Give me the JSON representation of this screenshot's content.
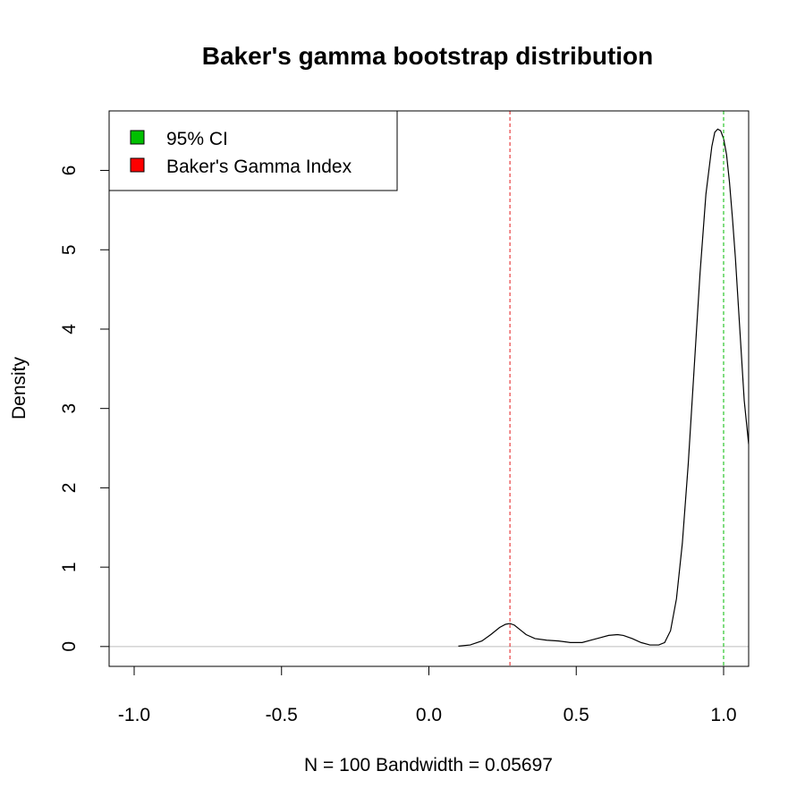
{
  "chart_data": {
    "type": "line",
    "title": "Baker's gamma bootstrap distribution",
    "xlabel": "N = 100   Bandwidth = 0.05697",
    "ylabel": "Density",
    "xlim": [
      -1.085,
      1.085
    ],
    "ylim": [
      -0.25,
      6.75
    ],
    "x_ticks": [
      -1.0,
      -0.5,
      0.0,
      0.5,
      1.0
    ],
    "x_tick_labels": [
      "-1.0",
      "-0.5",
      "0.0",
      "0.5",
      "1.0"
    ],
    "y_ticks": [
      0,
      1,
      2,
      3,
      4,
      5,
      6
    ],
    "y_tick_labels": [
      "0",
      "1",
      "2",
      "3",
      "4",
      "5",
      "6"
    ],
    "grid": false,
    "legend_position": "top-left",
    "series": [
      {
        "color": "#000000",
        "x": [
          0.1,
          0.14,
          0.18,
          0.21,
          0.24,
          0.26,
          0.275,
          0.29,
          0.31,
          0.33,
          0.36,
          0.4,
          0.44,
          0.48,
          0.52,
          0.55,
          0.58,
          0.61,
          0.64,
          0.66,
          0.69,
          0.72,
          0.75,
          0.78,
          0.8,
          0.82,
          0.84,
          0.86,
          0.88,
          0.9,
          0.92,
          0.94,
          0.96,
          0.97,
          0.98,
          0.99,
          1.0,
          1.01,
          1.02,
          1.03,
          1.04,
          1.05,
          1.06,
          1.07,
          1.085
        ],
        "y": [
          0.005,
          0.02,
          0.07,
          0.15,
          0.24,
          0.28,
          0.29,
          0.27,
          0.21,
          0.15,
          0.1,
          0.08,
          0.07,
          0.05,
          0.05,
          0.08,
          0.11,
          0.14,
          0.15,
          0.14,
          0.1,
          0.05,
          0.02,
          0.02,
          0.05,
          0.2,
          0.6,
          1.3,
          2.3,
          3.5,
          4.7,
          5.7,
          6.3,
          6.48,
          6.52,
          6.5,
          6.4,
          6.2,
          5.85,
          5.4,
          4.9,
          4.3,
          3.7,
          3.1,
          2.55
        ]
      }
    ],
    "reference_lines": [
      {
        "x": 0.275,
        "color": "#e41a1c",
        "style": "dashed",
        "legend": "Baker's Gamma Index"
      },
      {
        "x": 1.0,
        "color": "#00bb00",
        "style": "dashed",
        "legend": "95% CI"
      }
    ],
    "baseline": {
      "y": 0,
      "color": "#bebebe"
    },
    "legend": [
      {
        "label": "95% CI",
        "color": "#00c000"
      },
      {
        "label": "Baker's Gamma Index",
        "color": "#ff0000"
      }
    ]
  }
}
